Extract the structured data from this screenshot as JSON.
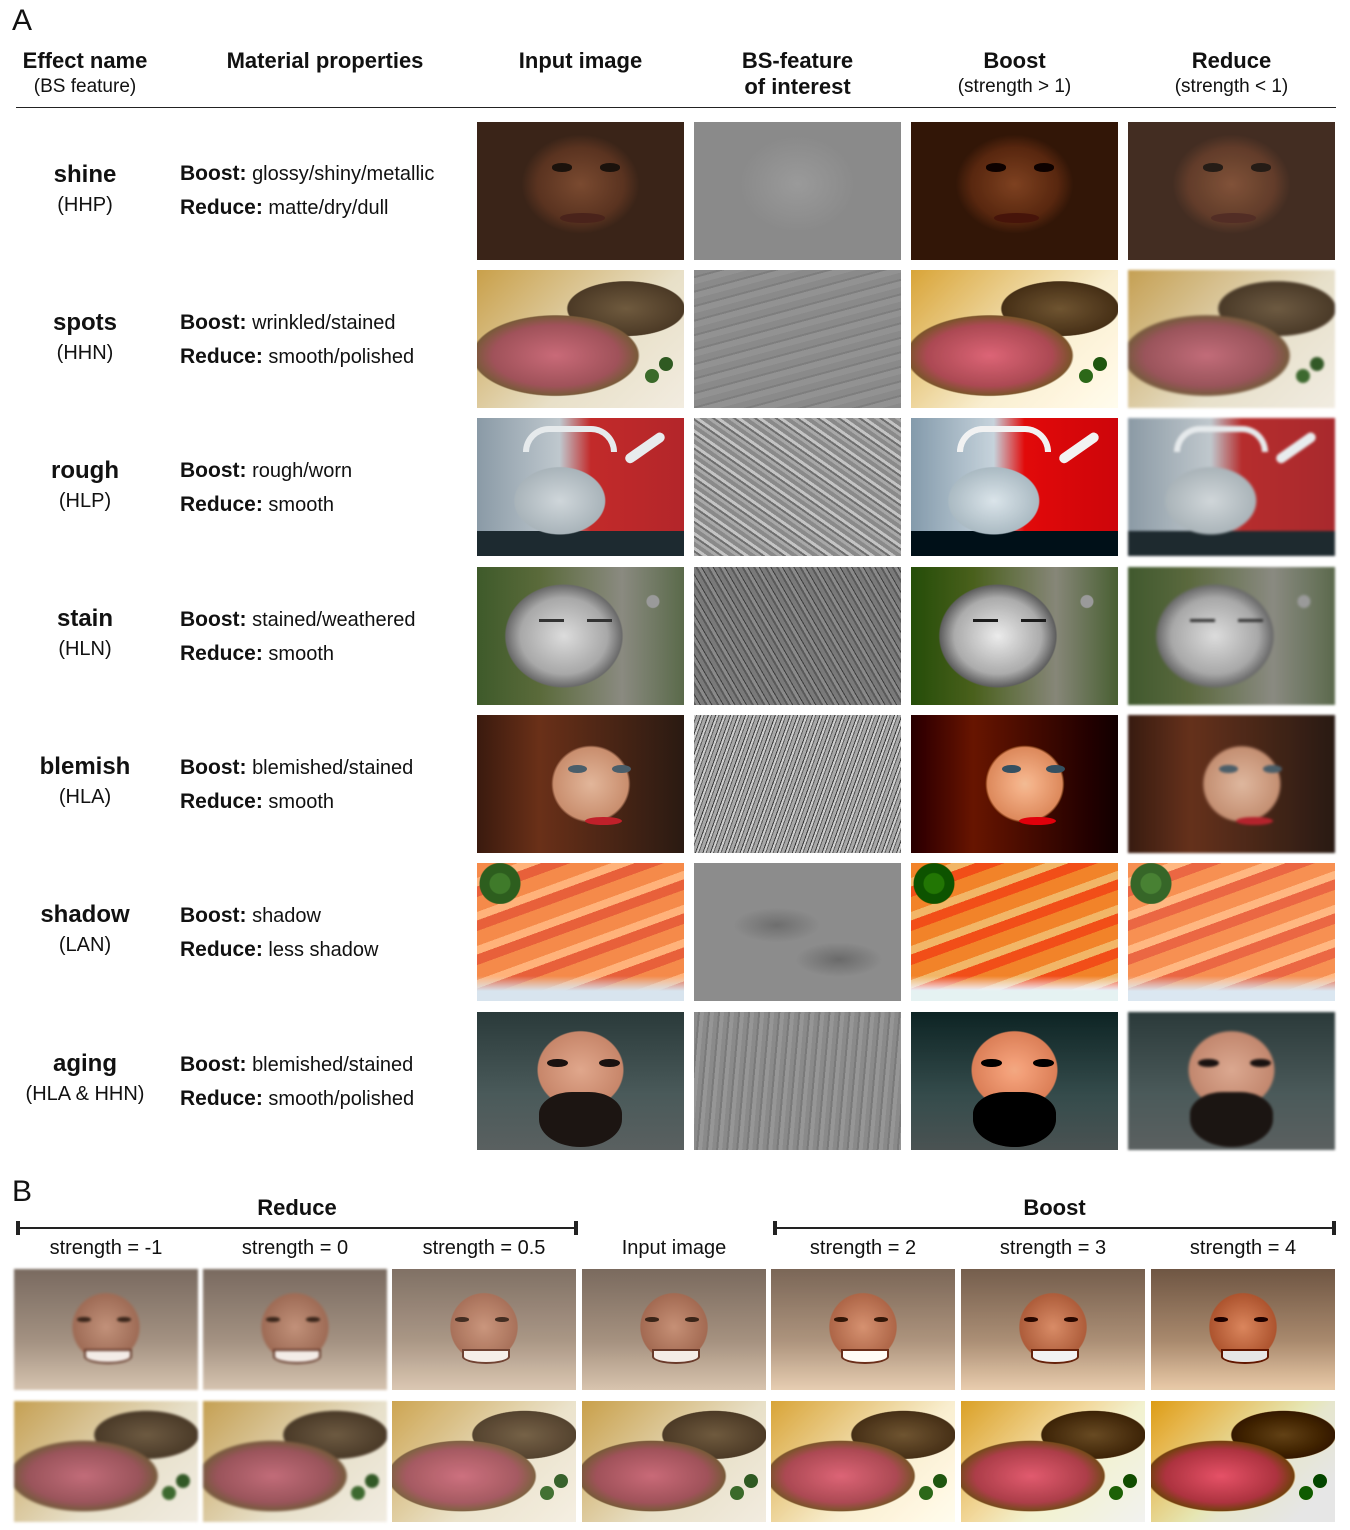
{
  "panel_a": {
    "letter": "A",
    "headers": {
      "effect_name": "Effect name",
      "effect_sub": "(BS feature)",
      "material": "Material properties",
      "input": "Input image",
      "bs_line1": "BS-feature",
      "bs_line2": "of interest",
      "boost": "Boost",
      "boost_sub": "(strength > 1)",
      "reduce": "Reduce",
      "reduce_sub": "(strength < 1)"
    },
    "rows": [
      {
        "name": "shine",
        "code": "(HHP)",
        "boost_label": "Boost:",
        "boost_text": "glossy/shiny/metallic",
        "reduce_label": "Reduce:",
        "reduce_text": "matte/dry/dull"
      },
      {
        "name": "spots",
        "code": "(HHN)",
        "boost_label": "Boost:",
        "boost_text": "wrinkled/stained",
        "reduce_label": "Reduce:",
        "reduce_text": "smooth/polished"
      },
      {
        "name": "rough",
        "code": "(HLP)",
        "boost_label": "Boost:",
        "boost_text": "rough/worn",
        "reduce_label": "Reduce:",
        "reduce_text": "smooth"
      },
      {
        "name": "stain",
        "code": "(HLN)",
        "boost_label": "Boost:",
        "boost_text": "stained/weathered",
        "reduce_label": "Reduce:",
        "reduce_text": "smooth"
      },
      {
        "name": "blemish",
        "code": "(HLA)",
        "boost_label": "Boost:",
        "boost_text": "blemished/stained",
        "reduce_label": "Reduce:",
        "reduce_text": "smooth"
      },
      {
        "name": "shadow",
        "code": "(LAN)",
        "boost_label": "Boost:",
        "boost_text": "shadow",
        "reduce_label": "Reduce:",
        "reduce_text": "less shadow"
      },
      {
        "name": "aging",
        "code": "(HLA & HHN)",
        "boost_label": "Boost:",
        "boost_text": "blemished/stained",
        "reduce_label": "Reduce:",
        "reduce_text": "smooth/polished"
      }
    ]
  },
  "panel_b": {
    "letter": "B",
    "reduce_title": "Reduce",
    "boost_title": "Boost",
    "columns": [
      "strength = -1",
      "strength = 0",
      "strength = 0.5",
      "Input image",
      "strength = 2",
      "strength = 3",
      "strength = 4"
    ]
  }
}
